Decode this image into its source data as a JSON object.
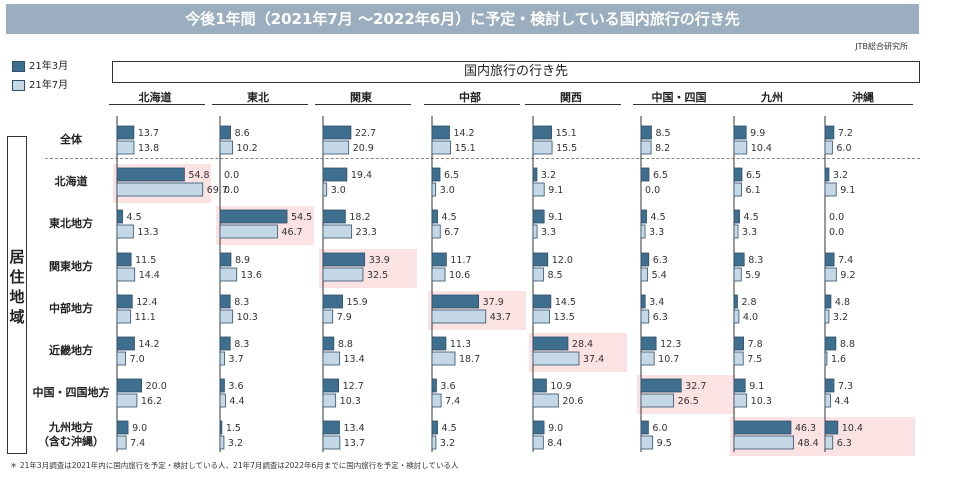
{
  "header": {
    "title": "今後1年間（2021年7月 〜2022年6月）に予定・検討している国内旅行の行き先",
    "source": "JTB総合研究所",
    "dest_label": "国内旅行の行き先",
    "resid_label": "居住地域"
  },
  "legend": {
    "march": "21年3月",
    "july": "21年7月"
  },
  "footnote": "＊ 21年3月調査は2021年内に国内旅行を予定・検討している人、21年7月調査は2022年6月までに国内旅行を予定・検討している人",
  "colors": {
    "march": "#3f6f8f",
    "july": "#c5d8e6",
    "highlight": "#fbe3e3",
    "bar_stroke": "#2f4f6b"
  },
  "chart_data": {
    "type": "bar",
    "title": "今後1年間（2021年7月 〜2022年6月）に予定・検討している国内旅行の行き先",
    "columns": [
      "北海道",
      "東北",
      "関東",
      "中部",
      "関西",
      "中国・四国",
      "九州",
      "沖縄"
    ],
    "rows": [
      "全体",
      "北海道",
      "東北地方",
      "関東地方",
      "中部地方",
      "近畿地方",
      "中国・四国地方",
      "九州地方（含む沖縄）"
    ],
    "series": [
      {
        "name": "21年3月",
        "values": [
          [
            13.7,
            8.6,
            22.7,
            14.2,
            15.1,
            8.5,
            9.9,
            7.2
          ],
          [
            54.8,
            0.0,
            19.4,
            6.5,
            3.2,
            6.5,
            6.5,
            3.2
          ],
          [
            4.5,
            54.5,
            18.2,
            4.5,
            9.1,
            4.5,
            4.5,
            0.0
          ],
          [
            11.5,
            8.9,
            33.9,
            11.7,
            12.0,
            6.3,
            8.3,
            7.4
          ],
          [
            12.4,
            8.3,
            15.9,
            37.9,
            14.5,
            3.4,
            2.8,
            4.8
          ],
          [
            14.2,
            8.3,
            8.8,
            11.3,
            28.4,
            12.3,
            7.8,
            8.8
          ],
          [
            20.0,
            3.6,
            12.7,
            3.6,
            10.9,
            32.7,
            9.1,
            7.3
          ],
          [
            9.0,
            1.5,
            13.4,
            4.5,
            9.0,
            6.0,
            46.3,
            10.4
          ]
        ]
      },
      {
        "name": "21年7月",
        "values": [
          [
            13.8,
            10.2,
            20.9,
            15.1,
            15.5,
            8.2,
            10.4,
            6.0
          ],
          [
            69.7,
            0.0,
            3.0,
            3.0,
            9.1,
            0.0,
            6.1,
            9.1
          ],
          [
            13.3,
            46.7,
            23.3,
            6.7,
            3.3,
            3.3,
            3.3,
            0.0
          ],
          [
            14.4,
            13.6,
            32.5,
            10.6,
            8.5,
            5.4,
            5.9,
            9.2
          ],
          [
            11.1,
            10.3,
            7.9,
            43.7,
            13.5,
            6.3,
            4.0,
            3.2
          ],
          [
            7.0,
            3.7,
            13.4,
            18.7,
            37.4,
            10.7,
            7.5,
            1.6
          ],
          [
            16.2,
            4.4,
            10.3,
            7.4,
            20.6,
            26.5,
            10.3,
            4.4
          ],
          [
            7.4,
            3.2,
            13.7,
            3.2,
            8.4,
            9.5,
            48.4,
            6.3
          ]
        ]
      }
    ],
    "highlight": [
      [
        1,
        0
      ],
      [
        2,
        1
      ],
      [
        3,
        2
      ],
      [
        4,
        3
      ],
      [
        5,
        4
      ],
      [
        6,
        5
      ],
      [
        7,
        6
      ],
      [
        7,
        7
      ]
    ]
  }
}
